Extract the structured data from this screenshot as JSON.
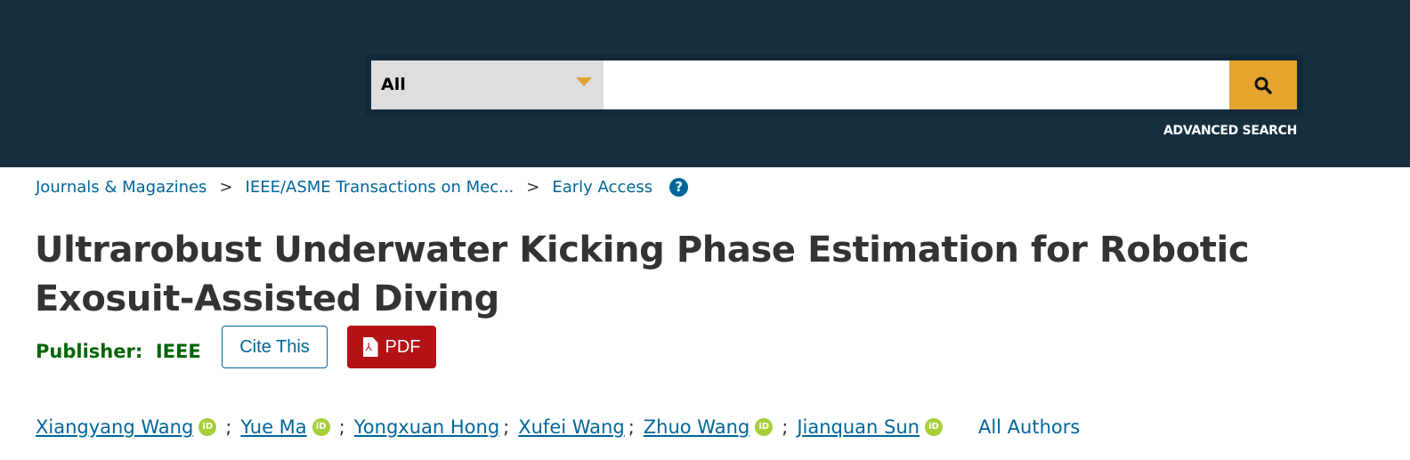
{
  "search": {
    "scope": "All",
    "value": "",
    "advanced": "ADVANCED SEARCH",
    "colors": {
      "header": "#152f3f",
      "accent": "#e4a42e"
    }
  },
  "breadcrumb": [
    "Journals & Magazines",
    "IEEE/ASME Transactions on Mec...",
    "Early Access"
  ],
  "breadcrumb_sep": ">",
  "help_icon": "?",
  "title_lines": [
    "Ultrarobust Underwater Kicking Phase Estimation for Robotic",
    "Exosuit-Assisted Diving"
  ],
  "publisher": {
    "label": "Publisher:",
    "value": "IEEE"
  },
  "buttons": {
    "cite": "Cite This",
    "pdf": "PDF"
  },
  "authors": [
    {
      "name": "Xiangyang Wang",
      "orcid": true
    },
    {
      "name": "Yue Ma",
      "orcid": true
    },
    {
      "name": "Yongxuan Hong",
      "orcid": false
    },
    {
      "name": "Xufei Wang",
      "orcid": false
    },
    {
      "name": "Zhuo Wang",
      "orcid": true
    },
    {
      "name": "Jianquan Sun",
      "orcid": true
    }
  ],
  "orcid_label": "iD",
  "author_sep": ";",
  "all_authors": "All Authors"
}
